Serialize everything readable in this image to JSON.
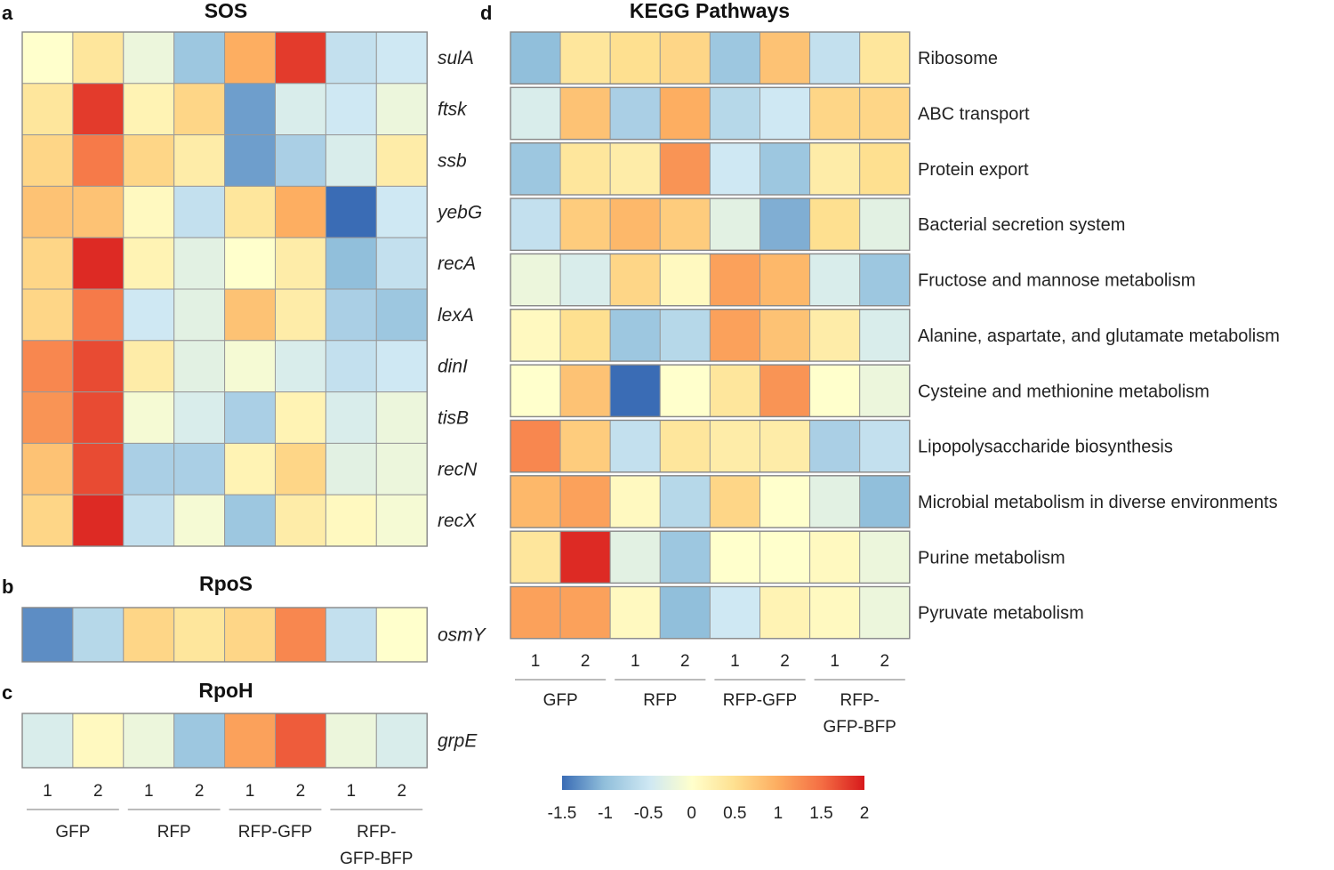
{
  "colors": {
    "low": "#3a6cb5",
    "mid": "#ffffcc",
    "high": "#d7191c",
    "grid": "#999999",
    "sep": "#bbbbbb"
  },
  "chart_data": [
    {
      "id": "a",
      "panel": "a",
      "type": "heatmap",
      "title": "SOS",
      "row_label_style": "italic",
      "rows": [
        "sulA",
        "ftsk",
        "ssb",
        "yebG",
        "recA",
        "lexA",
        "dinI",
        "tisB",
        "recN",
        "recX"
      ],
      "values": [
        [
          0.0,
          0.4,
          -0.2,
          -0.9,
          1.0,
          1.8,
          -0.6,
          -0.5
        ],
        [
          0.4,
          1.8,
          0.2,
          0.6,
          -1.2,
          -0.4,
          -0.5,
          -0.2
        ],
        [
          0.6,
          1.4,
          0.6,
          0.3,
          -1.2,
          -0.8,
          -0.4,
          0.3
        ],
        [
          0.8,
          0.8,
          0.1,
          -0.6,
          0.4,
          1.0,
          -1.5,
          -0.5
        ],
        [
          0.6,
          1.9,
          0.2,
          -0.3,
          0.0,
          0.3,
          -1.0,
          -0.6
        ],
        [
          0.6,
          1.4,
          -0.5,
          -0.3,
          0.8,
          0.3,
          -0.8,
          -0.9
        ],
        [
          1.3,
          1.7,
          0.3,
          -0.3,
          -0.1,
          -0.4,
          -0.6,
          -0.5
        ],
        [
          1.2,
          1.7,
          -0.1,
          -0.4,
          -0.8,
          0.2,
          -0.4,
          -0.2
        ],
        [
          0.8,
          1.7,
          -0.8,
          -0.8,
          0.2,
          0.6,
          -0.3,
          -0.2
        ],
        [
          0.6,
          1.9,
          -0.6,
          -0.1,
          -0.9,
          0.3,
          0.1,
          -0.1
        ]
      ]
    },
    {
      "id": "b",
      "panel": "b",
      "type": "heatmap",
      "title": "RpoS",
      "row_label_style": "italic",
      "rows": [
        "osmY"
      ],
      "values": [
        [
          -1.3,
          -0.7,
          0.6,
          0.4,
          0.6,
          1.3,
          -0.6,
          0.0
        ]
      ]
    },
    {
      "id": "c",
      "panel": "c",
      "type": "heatmap",
      "title": "RpoH",
      "row_label_style": "italic",
      "rows": [
        "grpE"
      ],
      "values": [
        [
          -0.4,
          0.1,
          -0.2,
          -0.9,
          1.1,
          1.6,
          -0.2,
          -0.4
        ]
      ]
    },
    {
      "id": "d",
      "panel": "d",
      "type": "heatmap",
      "title": "KEGG Pathways",
      "row_label_style": "normal",
      "rows": [
        "Ribosome",
        "ABC transport",
        "Protein export",
        "Bacterial secretion system",
        "Fructose and mannose metabolism",
        "Alanine, aspartate, and glutamate metabolism",
        "Cysteine and methionine metabolism",
        "Lipopolysaccharide biosynthesis",
        "Microbial metabolism in diverse environments",
        "Purine metabolism",
        "Pyruvate metabolism"
      ],
      "values": [
        [
          -1.0,
          0.4,
          0.5,
          0.6,
          -0.9,
          0.8,
          -0.6,
          0.4
        ],
        [
          -0.4,
          0.8,
          -0.8,
          1.0,
          -0.7,
          -0.5,
          0.6,
          0.6
        ],
        [
          -0.9,
          0.4,
          0.3,
          1.2,
          -0.5,
          -0.9,
          0.3,
          0.5
        ],
        [
          -0.6,
          0.7,
          0.9,
          0.7,
          -0.3,
          -1.1,
          0.5,
          -0.3
        ],
        [
          -0.2,
          -0.4,
          0.6,
          0.1,
          1.1,
          0.9,
          -0.4,
          -0.9
        ],
        [
          0.1,
          0.5,
          -0.9,
          -0.7,
          1.1,
          0.8,
          0.3,
          -0.4
        ],
        [
          0.0,
          0.8,
          -1.5,
          0.0,
          0.4,
          1.2,
          0.0,
          -0.2
        ],
        [
          1.3,
          0.7,
          -0.6,
          0.4,
          0.3,
          0.3,
          -0.8,
          -0.6
        ],
        [
          0.9,
          1.1,
          0.1,
          -0.7,
          0.6,
          0.0,
          -0.3,
          -1.0
        ],
        [
          0.4,
          1.9,
          -0.3,
          -0.9,
          0.0,
          0.0,
          0.1,
          -0.2
        ],
        [
          1.1,
          1.1,
          0.1,
          -1.0,
          -0.5,
          0.2,
          0.1,
          -0.2
        ]
      ]
    }
  ],
  "x_axis": {
    "replicates": [
      "1",
      "2",
      "1",
      "2",
      "1",
      "2",
      "1",
      "2"
    ],
    "groups": [
      {
        "lines": [
          "GFP"
        ]
      },
      {
        "lines": [
          "RFP"
        ]
      },
      {
        "lines": [
          "RFP-GFP"
        ]
      },
      {
        "lines": [
          "RFP-",
          "GFP-BFP"
        ]
      }
    ]
  },
  "colorbar": {
    "min": -1.5,
    "max": 2,
    "ticks": [
      "-1.5",
      "-1",
      "-0.5",
      "0",
      "0.5",
      "1",
      "1.5",
      "2"
    ]
  }
}
